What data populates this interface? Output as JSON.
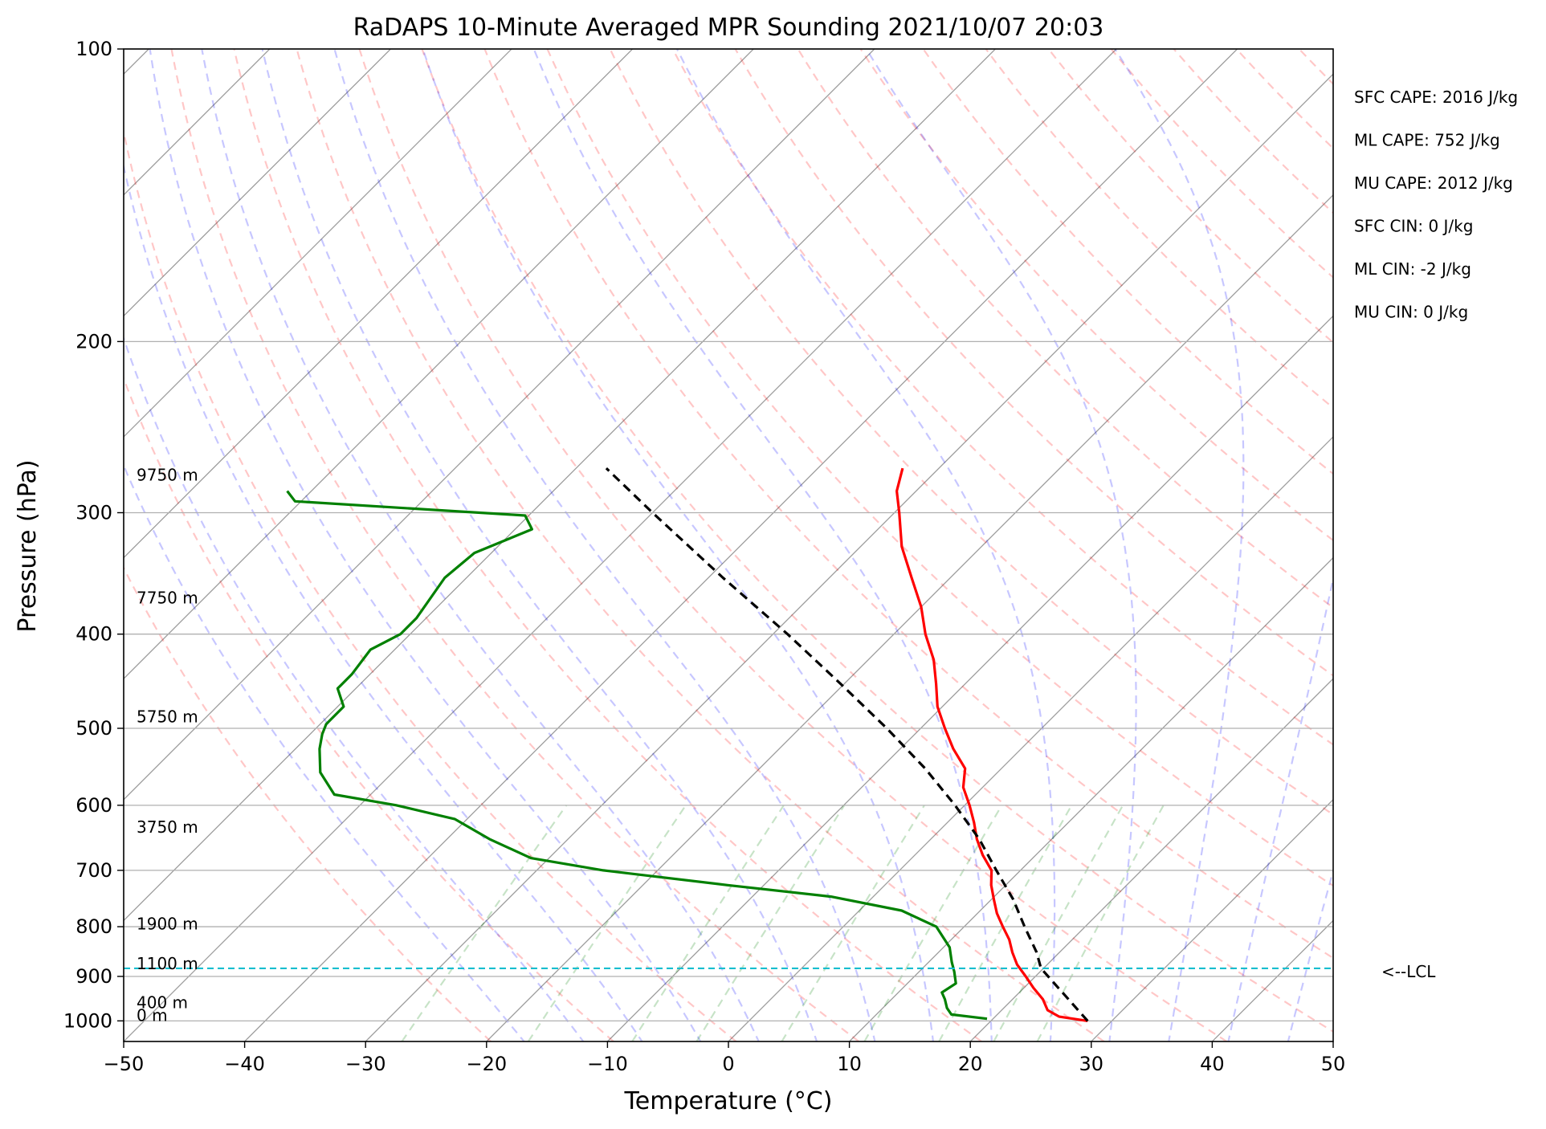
{
  "chart_data": {
    "type": "line",
    "title": "RaDAPS 10-Minute Averaged MPR Sounding 2021/10/07 20:03",
    "xlabel": "Temperature (°C)",
    "ylabel": "Pressure (hPa)",
    "xlim": [
      -50,
      50
    ],
    "ylim": [
      1050,
      100
    ],
    "y_scale": "log",
    "skew": "skew-T log-p",
    "x_ticks": [
      "−50",
      "−40",
      "−30",
      "−20",
      "−10",
      "0",
      "10",
      "20",
      "30",
      "40",
      "50"
    ],
    "y_ticks": [
      "100",
      "200",
      "300",
      "400",
      "500",
      "600",
      "700",
      "800",
      "900",
      "1000"
    ],
    "grid": true,
    "series": [
      {
        "role": "temperature",
        "color": "#ff0000",
        "values": [
          [
            1000,
            28.0
          ],
          [
            990,
            25.3
          ],
          [
            975,
            23.8
          ],
          [
            950,
            22.5
          ],
          [
            925,
            20.8
          ],
          [
            900,
            19.2
          ],
          [
            875,
            17.5
          ],
          [
            850,
            16.1
          ],
          [
            825,
            14.8
          ],
          [
            800,
            13.2
          ],
          [
            775,
            11.6
          ],
          [
            750,
            10.2
          ],
          [
            725,
            8.8
          ],
          [
            700,
            7.6
          ],
          [
            675,
            5.6
          ],
          [
            650,
            3.8
          ],
          [
            625,
            2.2
          ],
          [
            600,
            0.4
          ],
          [
            575,
            -1.6
          ],
          [
            550,
            -3.0
          ],
          [
            525,
            -5.6
          ],
          [
            500,
            -8.0
          ],
          [
            475,
            -10.4
          ],
          [
            450,
            -12.4
          ],
          [
            425,
            -14.6
          ],
          [
            400,
            -17.4
          ],
          [
            375,
            -20.0
          ],
          [
            350,
            -23.2
          ],
          [
            325,
            -26.6
          ],
          [
            300,
            -29.6
          ],
          [
            285,
            -31.6
          ],
          [
            270,
            -33.0
          ]
        ]
      },
      {
        "role": "dewpoint",
        "color": "#008000",
        "values": [
          [
            995,
            19.5
          ],
          [
            985,
            16.2
          ],
          [
            970,
            15.3
          ],
          [
            950,
            14.4
          ],
          [
            935,
            13.6
          ],
          [
            915,
            14.0
          ],
          [
            890,
            12.9
          ],
          [
            870,
            11.9
          ],
          [
            840,
            10.5
          ],
          [
            800,
            7.7
          ],
          [
            770,
            3.5
          ],
          [
            745,
            -3.5
          ],
          [
            725,
            -13.0
          ],
          [
            700,
            -24.5
          ],
          [
            680,
            -31.5
          ],
          [
            650,
            -36.5
          ],
          [
            620,
            -41.0
          ],
          [
            600,
            -47.0
          ],
          [
            585,
            -53.0
          ],
          [
            555,
            -56.0
          ],
          [
            525,
            -58.0
          ],
          [
            507,
            -59.0
          ],
          [
            495,
            -59.5
          ],
          [
            475,
            -59.5
          ],
          [
            455,
            -61.5
          ],
          [
            450,
            -61.5
          ],
          [
            440,
            -61.5
          ],
          [
            415,
            -62.0
          ],
          [
            400,
            -60.8
          ],
          [
            385,
            -60.8
          ],
          [
            350,
            -61.8
          ],
          [
            330,
            -61.4
          ],
          [
            312,
            -58.6
          ],
          [
            302,
            -60.3
          ],
          [
            292,
            -80.5
          ],
          [
            285,
            -82.0
          ]
        ]
      },
      {
        "role": "parcel",
        "color": "#000000",
        "style": "dashed",
        "values": [
          [
            1000,
            28.0
          ],
          [
            883,
            19.8
          ],
          [
            850,
            18.1
          ],
          [
            800,
            15.0
          ],
          [
            750,
            11.8
          ],
          [
            700,
            8.0
          ],
          [
            650,
            4.0
          ],
          [
            600,
            -0.8
          ],
          [
            550,
            -6.3
          ],
          [
            500,
            -12.8
          ],
          [
            450,
            -20.3
          ],
          [
            400,
            -28.8
          ],
          [
            350,
            -38.8
          ],
          [
            300,
            -50.0
          ],
          [
            270,
            -57.5
          ]
        ]
      }
    ],
    "lcl_pressure": 883,
    "lcl_label": "<--LCL",
    "height_labels": [
      {
        "p": 1000,
        "text": "0 m"
      },
      {
        "p": 970,
        "text": "400 m"
      },
      {
        "p": 885,
        "text": "1100 m"
      },
      {
        "p": 805,
        "text": "1900 m"
      },
      {
        "p": 640,
        "text": "3750 m"
      },
      {
        "p": 493,
        "text": "5750 m"
      },
      {
        "p": 372,
        "text": "7750 m"
      },
      {
        "p": 278,
        "text": "9750 m"
      }
    ],
    "stats": [
      "SFC CAPE: 2016 J/kg",
      "ML CAPE: 752 J/kg",
      "MU CAPE: 2012 J/kg",
      "SFC CIN: 0 J/kg",
      "ML CIN: -2 J/kg",
      "MU CIN: 0 J/kg"
    ],
    "colors": {
      "dry_adiabats": "#ff0000",
      "moist_adiabats": "#0000ff",
      "mixing_ratio": "#008000",
      "isotherms": "#808080",
      "lcl_line": "#17becf"
    }
  }
}
